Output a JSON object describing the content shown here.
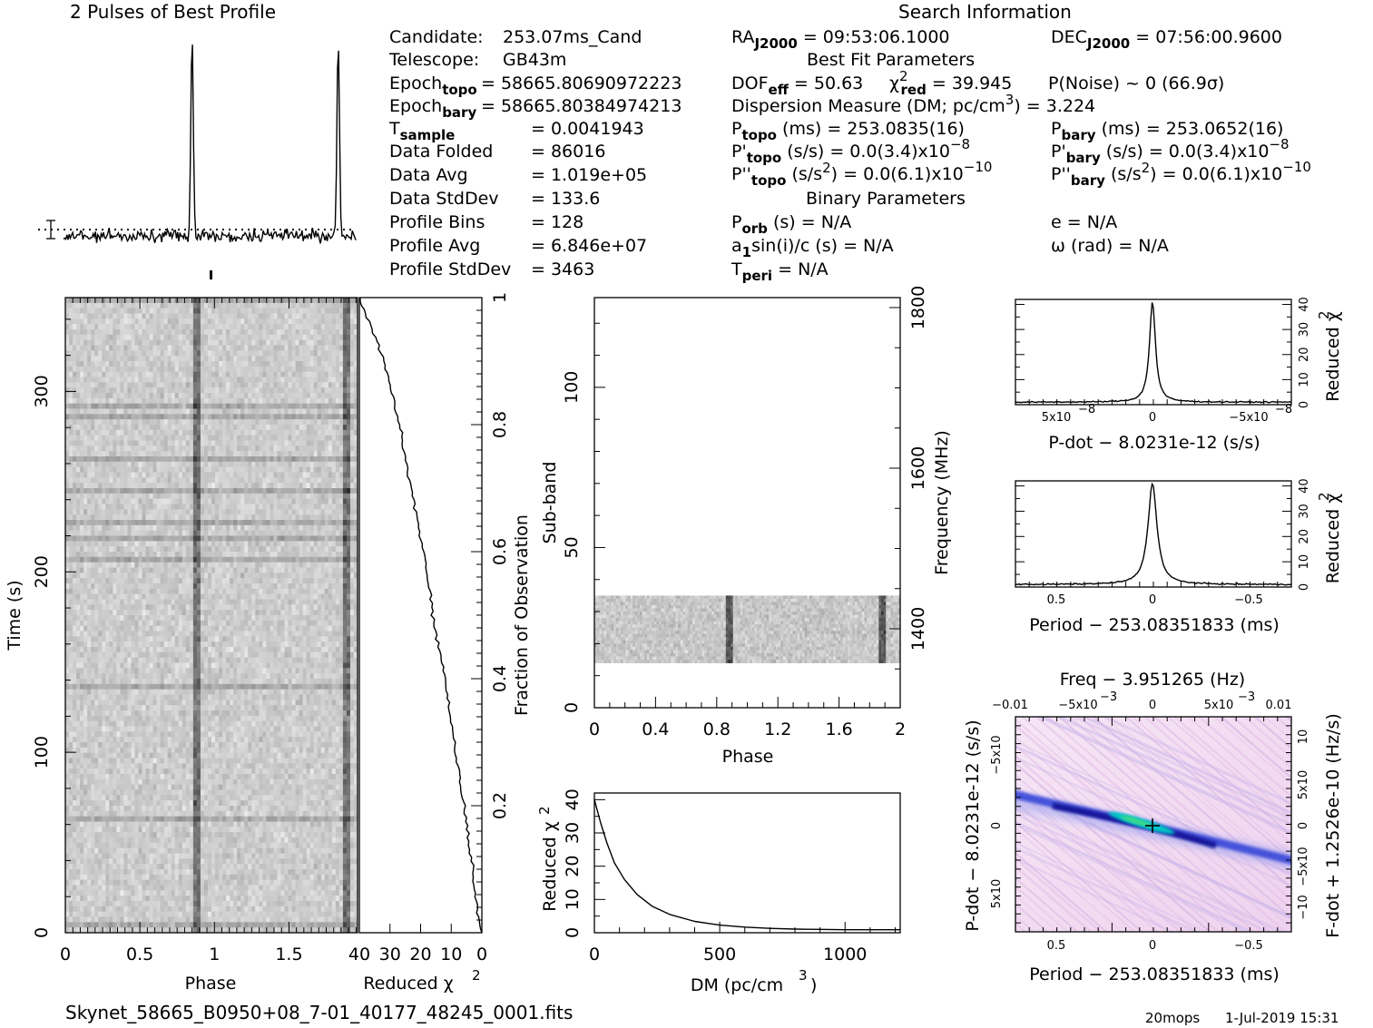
{
  "top_title": "2 Pulses of Best Profile",
  "search_title": "Search Information",
  "footer": {
    "filename": "Skynet_58665_B0950+08_7-01_40177_48245_0001.fits",
    "user": "20mops",
    "date": "1-Jul-2019 15:31"
  },
  "candidate_info": [
    {
      "label": "Candidate:",
      "value": "253.07ms_Cand"
    },
    {
      "label": "Telescope:",
      "value": "GB43m"
    },
    {
      "label": "Epoch",
      "sub": "topo",
      "value": "= 58665.80690972223"
    },
    {
      "label": "Epoch",
      "sub": "bary",
      "value": "= 58665.80384974213"
    },
    {
      "label": "T",
      "sub": "sample",
      "value": "=    0.0041943"
    },
    {
      "label": "Data Folded",
      "value": "=    86016"
    },
    {
      "label": "Data Avg",
      "value": "=    1.019e+05"
    },
    {
      "label": "Data StdDev",
      "value": "=    133.6"
    },
    {
      "label": "Profile Bins",
      "value": "=    128"
    },
    {
      "label": "Profile Avg",
      "value": "=    6.846e+07"
    },
    {
      "label": "Profile StdDev",
      "value": "=    3463"
    }
  ],
  "search_info": {
    "ra": "= 09:53:06.1000",
    "dec": "= 07:56:00.9600",
    "best_fit_title": "Best Fit Parameters",
    "dof": "= 50.63",
    "chi2red": "= 39.945",
    "pnoise": "P(Noise) ~ 0    (66.9σ)",
    "dm_label": "Dispersion Measure (DM; pc/cm",
    "dm_value": ") = 3.224",
    "ptopo": "(ms) =  253.0835(16)",
    "pbary": "(ms) =  253.0652(16)",
    "pdtopo": "(s/s) = 0.0(3.4)x10",
    "pdtopo_exp": "−8",
    "pdbary": "(s/s) = 0.0(3.4)x10",
    "pdbary_exp": "−8",
    "pddtopo": "(s/s",
    "pddtopo_val": ") = 0.0(6.1)x10",
    "pddtopo_exp": "−10",
    "pddbary": "(s/s",
    "pddbary_val": ") = 0.0(6.1)x10",
    "pddbary_exp": "−10",
    "binary_title": "Binary Parameters",
    "porb": "(s) = N/A",
    "ecc": "e = N/A",
    "a1sin": "sin(i)/c (s) = N/A",
    "omega": "ω (rad) = N/A",
    "tperi": "= N/A"
  },
  "chart_data": [
    {
      "name": "profile",
      "type": "line",
      "title": "2 Pulses of Best Profile",
      "x_range": [
        0,
        2
      ],
      "peaks_at_phase": [
        0.88,
        1.88
      ]
    },
    {
      "name": "time_phase",
      "type": "heatmap",
      "xlabel": "Phase",
      "ylabel": "Time (s)",
      "xlim": [
        0,
        1.96
      ],
      "ylim": [
        0,
        352
      ],
      "xticks": [
        "0",
        "0.5",
        "1",
        "1.5"
      ],
      "yticks": [
        "0",
        "100",
        "200",
        "300"
      ],
      "right_label": "Fraction of Observation",
      "right_ticks": [
        "0.2",
        "0.4",
        "0.6",
        "0.8",
        "1"
      ]
    },
    {
      "name": "time_chi2",
      "type": "line",
      "xlabel": "Reduced χ",
      "xticks": [
        "40",
        "30",
        "20",
        "10",
        "0"
      ],
      "xlim": [
        40,
        0
      ],
      "fraction": [
        0,
        0.03,
        0.1,
        0.2,
        0.3,
        0.4,
        0.5,
        0.6,
        0.7,
        0.8,
        0.9,
        0.95,
        1.0
      ],
      "chi2": [
        0,
        1.5,
        3,
        6,
        9,
        12,
        16,
        19,
        23,
        27,
        32,
        36,
        39.9
      ]
    },
    {
      "name": "subband_phase",
      "type": "heatmap",
      "xlabel": "Phase",
      "ylabel": "Sub-band",
      "xlim": [
        0,
        2
      ],
      "ylim": [
        0,
        128
      ],
      "xticks": [
        "0",
        "0.4",
        "0.8",
        "1.2",
        "1.6",
        "2"
      ],
      "yticks": [
        "0",
        "50",
        "100"
      ],
      "right_label": "Frequency (MHz)",
      "right_ticks": [
        "1400",
        "1600",
        "1800"
      ],
      "data_rows": [
        14,
        35
      ]
    },
    {
      "name": "dm_chi2",
      "type": "line",
      "xlabel": "DM (pc/cm",
      "ylabel": "Reduced χ",
      "xlim": [
        0,
        1220
      ],
      "ylim": [
        0,
        42
      ],
      "xticks": [
        "0",
        "500",
        "1000"
      ],
      "yticks": [
        "0",
        "10",
        "20",
        "30",
        "40"
      ],
      "x": [
        0,
        25,
        50,
        80,
        120,
        170,
        230,
        300,
        400,
        500,
        600,
        700,
        800,
        900,
        1000,
        1100,
        1220
      ],
      "y": [
        40,
        33,
        27,
        21,
        16,
        11.5,
        8,
        5.5,
        3.4,
        2.3,
        1.7,
        1.3,
        1.1,
        1.0,
        0.9,
        0.9,
        0.9
      ]
    },
    {
      "name": "pdot_chi2",
      "type": "line",
      "xlabel": "P-dot − 8.0231e-12 (s/s)",
      "ylabel": "Reduced χ",
      "ylim": [
        0,
        42
      ],
      "yticks": [
        "0",
        "10",
        "20",
        "30",
        "40"
      ],
      "xticks": [
        "5x10",
        "0",
        "−5x10"
      ],
      "xtick_exp": "−8",
      "peak": 40
    },
    {
      "name": "period_chi2",
      "type": "line",
      "xlabel": "Period − 253.08351833 (ms)",
      "ylabel": "Reduced χ",
      "ylim": [
        0,
        42
      ],
      "yticks": [
        "0",
        "10",
        "20",
        "30",
        "40"
      ],
      "xticks": [
        "0.5",
        "0",
        "−0.5"
      ],
      "peak": 40
    },
    {
      "name": "period_pdot",
      "type": "heatmap",
      "title": "Freq − 3.951265 (Hz)",
      "xlabel": "Period − 253.08351833 (ms)",
      "ylabel": "P-dot − 8.0231e-12 (s/s)",
      "right_label": "F-dot + 1.2526e-10 (Hz/s)",
      "top_ticks": [
        "−0.01",
        "−5x10",
        "0",
        "5x10",
        "0.01"
      ],
      "top_tick_exp": "−3",
      "xticks": [
        "0.5",
        "0",
        "−0.5"
      ],
      "yticks": [
        "5x10",
        "0",
        "−5x10"
      ],
      "ytick_exp": "−8",
      "right_ticks": [
        "−10",
        "−5x10",
        "0",
        "5x10",
        "10"
      ],
      "right_tick_exp": "−8"
    }
  ],
  "colors": {
    "line": "#000000",
    "track": "#1a1aa0",
    "peak": "#00d0c0",
    "wash": "#f4dcf2"
  }
}
